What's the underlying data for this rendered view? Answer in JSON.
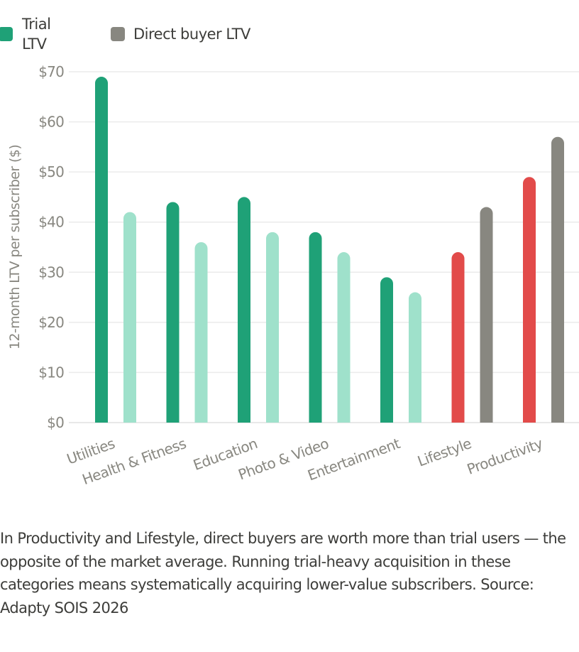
{
  "chart_data": {
    "type": "bar",
    "title": "",
    "xlabel": "",
    "ylabel": "12-month LTV per subscriber ($)",
    "ylim": [
      0,
      70
    ],
    "yticks": [
      "$0",
      "$10",
      "$20",
      "$30",
      "$40",
      "$50",
      "$60",
      "$70"
    ],
    "ytick_values": [
      0,
      10,
      20,
      30,
      40,
      50,
      60,
      70
    ],
    "grid": true,
    "legend_placement": "top-left",
    "categories": [
      "Utilities",
      "Health & Fitness",
      "Education",
      "Photo & Video",
      "Entertainment",
      "Lifestyle",
      "Productivity"
    ],
    "series": [
      {
        "name": "Trial LTV",
        "values": [
          69,
          44,
          45,
          38,
          29,
          34,
          49
        ]
      },
      {
        "name": "Direct buyer LTV",
        "values": [
          42,
          36,
          38,
          34,
          26,
          43,
          57
        ]
      }
    ],
    "bar_colors": {
      "trial_default": "#1fa177",
      "direct_default": "#9fe1cb",
      "trial_highlight": "#e24b4a",
      "direct_highlight": "#888780"
    },
    "highlighted_categories": [
      "Lifestyle",
      "Productivity"
    ],
    "legend": [
      {
        "label_lines": [
          "Trial",
          "LTV"
        ],
        "color": "#1fa177"
      },
      {
        "label_lines": [
          "Direct buyer LTV"
        ],
        "color": "#888780"
      }
    ]
  },
  "caption": "In Productivity and Lifestyle, direct buyers are worth more than trial users — the opposite of the market average. Running trial-heavy acquisition in these categories means systematically acquiring lower-value subscribers. Source: Adapty SOIS 2026"
}
